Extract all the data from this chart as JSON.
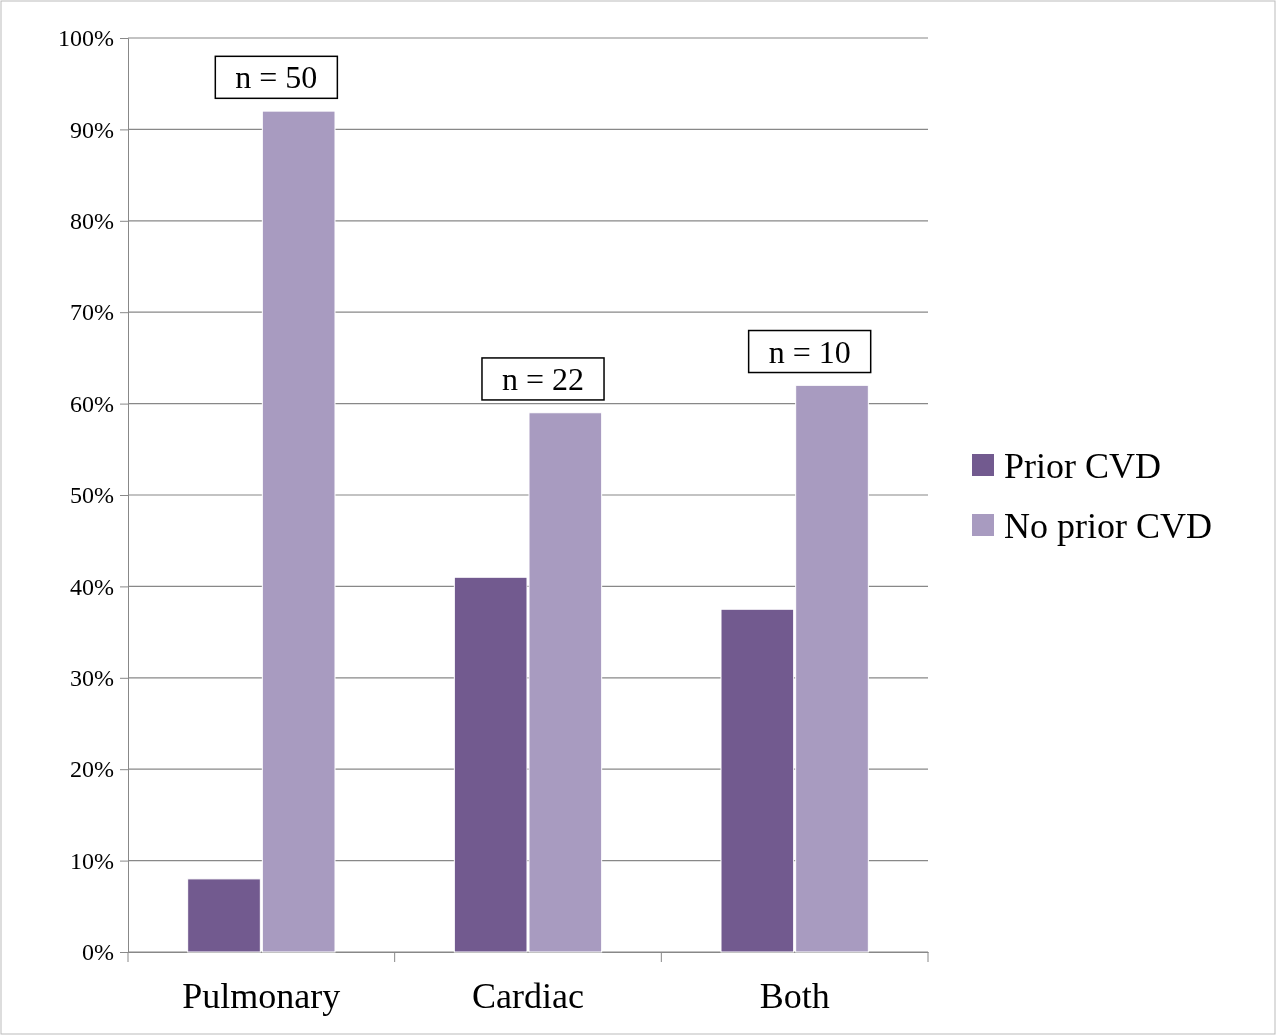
{
  "chart_data": {
    "type": "bar",
    "categories": [
      "Pulmonary",
      "Cardiac",
      "Both"
    ],
    "series": [
      {
        "name": "Prior CVD",
        "color": "#725a8f",
        "values": [
          8,
          41,
          37.5
        ]
      },
      {
        "name": "No prior CVD",
        "color": "#a89bc0",
        "values": [
          92,
          59,
          62
        ]
      }
    ],
    "ylim": [
      0,
      100
    ],
    "yticks": [
      {
        "value": 0,
        "label": "0%"
      },
      {
        "value": 10,
        "label": "10%"
      },
      {
        "value": 20,
        "label": "20%"
      },
      {
        "value": 30,
        "label": "30%"
      },
      {
        "value": 40,
        "label": "40%"
      },
      {
        "value": 50,
        "label": "50%"
      },
      {
        "value": 60,
        "label": "60%"
      },
      {
        "value": 70,
        "label": "70%"
      },
      {
        "value": 80,
        "label": "80%"
      },
      {
        "value": 90,
        "label": "90%"
      },
      {
        "value": 100,
        "label": "100%"
      }
    ],
    "grid": "y",
    "legend": "right",
    "annotations": [
      "n = 50",
      "n = 22",
      "n = 10"
    ]
  }
}
